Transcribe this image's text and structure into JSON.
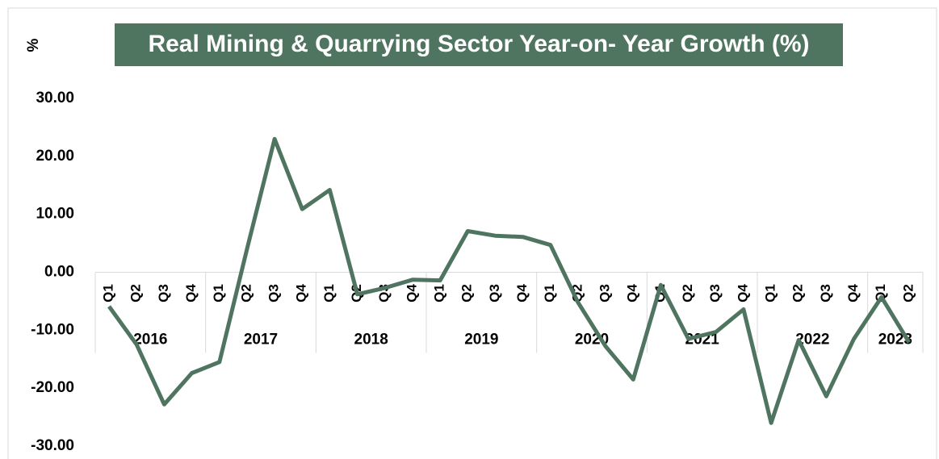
{
  "chart_data": {
    "type": "line",
    "title": "Real Mining & Quarrying Sector Year-on- Year Growth (%)",
    "y_label": "%",
    "categories": [
      "Q1",
      "Q2",
      "Q3",
      "Q4",
      "Q1",
      "Q2",
      "Q3",
      "Q4",
      "Q1",
      "Q2",
      "Q3",
      "Q4",
      "Q1",
      "Q2",
      "Q3",
      "Q4",
      "Q1",
      "Q2",
      "Q3",
      "Q4",
      "Q1",
      "Q2",
      "Q3",
      "Q4",
      "Q1",
      "Q2",
      "Q3",
      "Q4",
      "Q1",
      "Q2"
    ],
    "years": [
      "2016",
      "2017",
      "2018",
      "2019",
      "2020",
      "2021",
      "2022",
      "2023"
    ],
    "series": [
      {
        "name": "Real Mining & Quarrying Sector Year-on- Year Growth",
        "color": "#4f7561",
        "values": [
          -5.9,
          -12.5,
          -22.8,
          -17.4,
          -15.5,
          4.0,
          23.0,
          10.9,
          14.2,
          -3.8,
          -2.7,
          -1.3,
          -1.4,
          7.1,
          6.3,
          6.1,
          4.7,
          -5.2,
          -12.8,
          -18.5,
          -2.2,
          -11.5,
          -10.3,
          -6.4,
          -26.0,
          -11.7,
          -21.4,
          -11.5,
          -4.3,
          -12.1
        ]
      }
    ],
    "ylim": [
      -30,
      30
    ],
    "yticks": [
      {
        "value": 30,
        "label": "30.00"
      },
      {
        "value": 20,
        "label": "20.00"
      },
      {
        "value": 10,
        "label": "10.00"
      },
      {
        "value": 0,
        "label": "0.00"
      },
      {
        "value": -10,
        "label": "-10.00"
      },
      {
        "value": -20,
        "label": "-20.00"
      },
      {
        "value": -30,
        "label": "-30.00"
      }
    ],
    "title_background": "#4f7561",
    "grid": false
  }
}
